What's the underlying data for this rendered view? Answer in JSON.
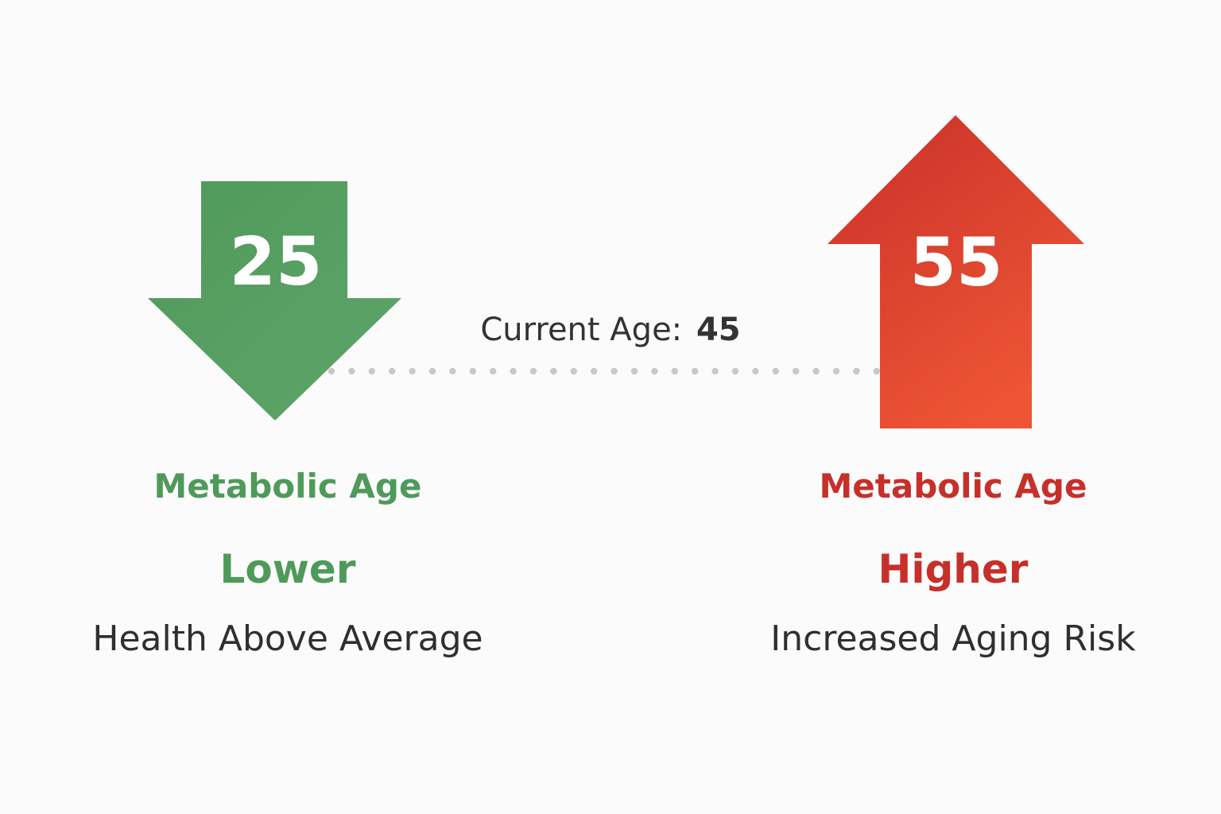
{
  "current_age": {
    "label": "Current Age: ",
    "value": "45"
  },
  "lower": {
    "number": "25",
    "metabolic_label": "Metabolic Age",
    "status": "Lower",
    "description": "Health Above Average",
    "arrow_direction": "down",
    "color": "#559d60"
  },
  "higher": {
    "number": "55",
    "metabolic_label": "Metabolic Age",
    "status": "Higher",
    "description": "Increased Aging Risk",
    "arrow_direction": "up",
    "color": "#e04a32"
  },
  "connector": {
    "style": "dotted",
    "color": "#c8c8c8"
  }
}
